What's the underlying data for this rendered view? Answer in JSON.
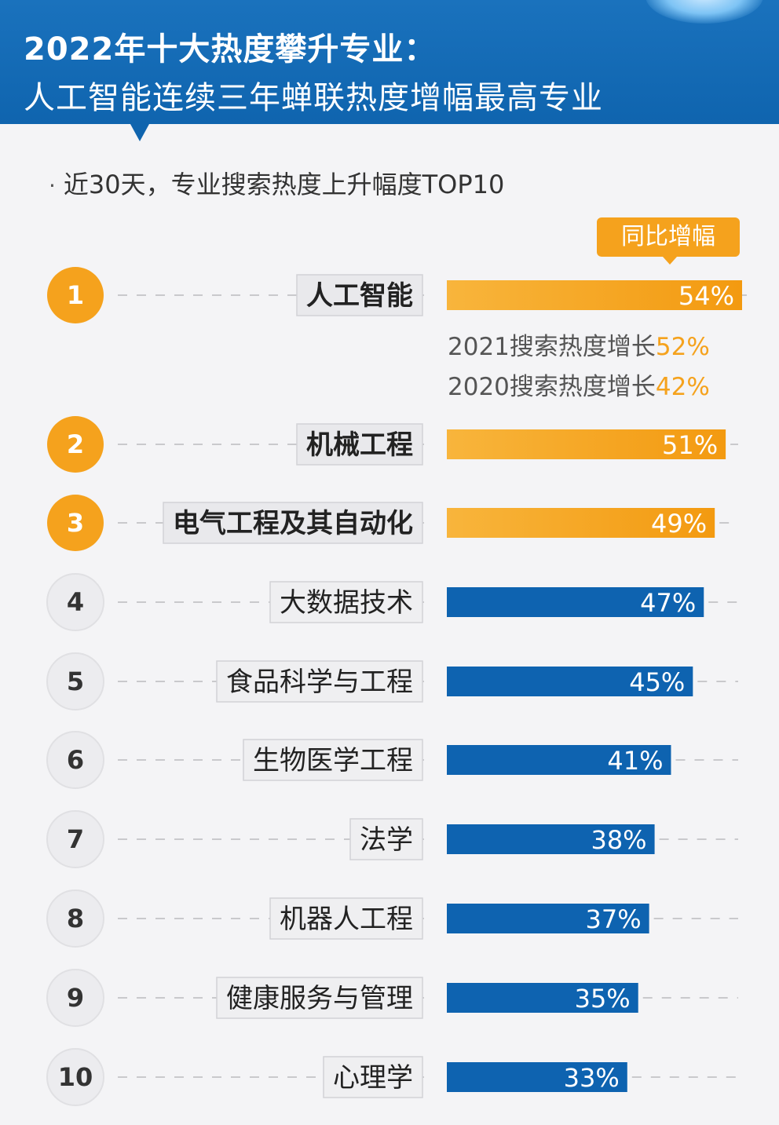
{
  "header": {
    "title_line1": "2022年十大热度攀升专业：",
    "title_line2": "人工智能连续三年蝉联热度增幅最高专业"
  },
  "subtitle": "近30天，专业搜索热度上升幅度TOP10",
  "legend_label": "同比增幅",
  "notes": [
    {
      "prefix": "2021搜索热度增长",
      "value": "52%"
    },
    {
      "prefix": "2020搜索热度增长",
      "value": "42%"
    }
  ],
  "colors": {
    "orange": "#f5a21d",
    "blue": "#0e63b0",
    "header_blue": "#1a72bd"
  },
  "chart_data": {
    "type": "bar",
    "orientation": "horizontal",
    "categories": [
      "人工智能",
      "机械工程",
      "电气工程及其自动化",
      "大数据技术",
      "食品科学与工程",
      "生物医学工程",
      "法学",
      "机器人工程",
      "健康服务与管理",
      "心理学"
    ],
    "ranks": [
      "1",
      "2",
      "3",
      "4",
      "5",
      "6",
      "7",
      "8",
      "9",
      "10"
    ],
    "values": [
      54,
      51,
      49,
      47,
      45,
      41,
      38,
      37,
      35,
      33
    ],
    "value_labels": [
      "54%",
      "51%",
      "49%",
      "47%",
      "45%",
      "41%",
      "38%",
      "37%",
      "35%",
      "33%"
    ],
    "highlight_top": 3,
    "xlim": [
      0,
      54
    ]
  }
}
